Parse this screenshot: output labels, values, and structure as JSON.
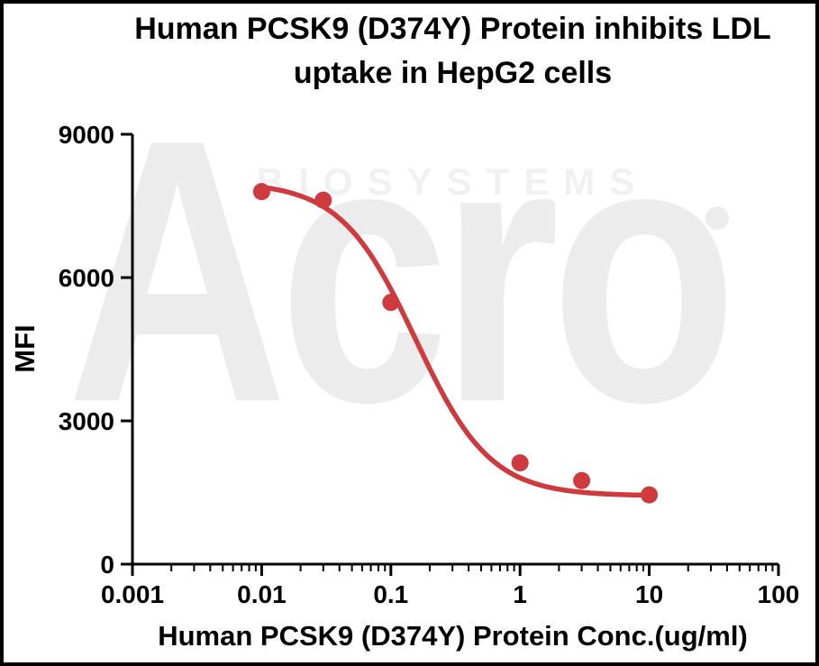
{
  "title": {
    "line1": "Human PCSK9 (D374Y) Protein inhibits LDL",
    "line2": "uptake in HepG2 cells"
  },
  "watermark": {
    "brand": "Acro",
    "sub": "BIOSYSTEMS",
    "brand_color": "#ececec",
    "sub_color": "#f1f1f1"
  },
  "chart_data": {
    "type": "scatter",
    "x_scale": "log10",
    "xlabel": "Human PCSK9 (D374Y) Protein Conc.(ug/ml)",
    "ylabel": "MFI",
    "xlim": [
      0.001,
      100
    ],
    "ylim": [
      0,
      9000
    ],
    "x_ticks": [
      0.001,
      0.01,
      0.1,
      1,
      10,
      100
    ],
    "x_tick_labels": [
      "0.001",
      "0.01",
      "0.1",
      "1",
      "10",
      "100"
    ],
    "y_ticks": [
      0,
      3000,
      6000,
      9000
    ],
    "y_tick_labels": [
      "0",
      "3000",
      "6000",
      "9000"
    ],
    "grid": false,
    "legend": "none",
    "axis_color": "#000000",
    "series": [
      {
        "color": "#ce3a3e",
        "x": [
          0.01,
          0.03,
          0.1,
          1,
          3,
          10
        ],
        "y": [
          7800,
          7620,
          5480,
          2120,
          1750,
          1450
        ],
        "fit_4pl": {
          "top": 8000,
          "bottom": 1430,
          "ic50": 0.155,
          "hill": 1.5,
          "x_range": [
            0.01,
            10
          ]
        }
      }
    ]
  }
}
